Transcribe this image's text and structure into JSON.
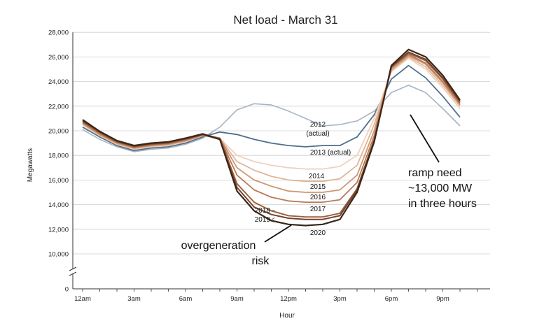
{
  "chart_data": {
    "type": "line",
    "title": "Net load - March 31",
    "xlabel": "Hour",
    "ylabel": "Megawatts",
    "x": [
      0,
      1,
      2,
      3,
      4,
      5,
      6,
      7,
      8,
      9,
      10,
      11,
      12,
      13,
      14,
      15,
      16,
      17,
      18,
      19,
      20,
      21,
      22,
      23
    ],
    "x_tick_labels": [
      {
        "x": 0,
        "label": "12am"
      },
      {
        "x": 3,
        "label": "3am"
      },
      {
        "x": 6,
        "label": "6am"
      },
      {
        "x": 9,
        "label": "9am"
      },
      {
        "x": 12,
        "label": "12pm"
      },
      {
        "x": 15,
        "label": "3pm"
      },
      {
        "x": 18,
        "label": "6pm"
      },
      {
        "x": 21,
        "label": "9pm"
      }
    ],
    "y_ticks": [
      10000,
      12000,
      14000,
      16000,
      18000,
      20000,
      22000,
      24000,
      26000,
      28000
    ],
    "y_tick_labels": [
      "10,000",
      "12,000",
      "14,000",
      "16,000",
      "18,000",
      "20,000",
      "22,000",
      "24,000",
      "26,000",
      "28,000"
    ],
    "y_zero_label": "0",
    "ylim": [
      0,
      28000
    ],
    "axis_break": true,
    "grid": "horizontal",
    "series": [
      {
        "name": "2012 (actual)",
        "color": "#a7b4c2",
        "width": 1.6,
        "values": [
          20100,
          19300,
          18700,
          18300,
          18500,
          18600,
          18900,
          19400,
          20300,
          21700,
          22200,
          22100,
          21600,
          21000,
          20400,
          20500,
          20800,
          21600,
          23100,
          23700,
          23100,
          21800,
          20400,
          null
        ]
      },
      {
        "name": "2013 (actual)",
        "color": "#4f6f8c",
        "width": 1.8,
        "values": [
          20300,
          19500,
          18800,
          18400,
          18600,
          18700,
          19000,
          19500,
          19900,
          19700,
          19300,
          19000,
          18800,
          18700,
          18800,
          18800,
          19500,
          21300,
          24200,
          25300,
          24300,
          22800,
          21100,
          null
        ]
      },
      {
        "name": "2014",
        "color": "#eed2be",
        "width": 1.8,
        "values": [
          20500,
          19600,
          18900,
          18500,
          18700,
          18800,
          19100,
          19600,
          19400,
          18000,
          17500,
          17200,
          17000,
          16900,
          16900,
          17100,
          18000,
          21000,
          24800,
          25900,
          25000,
          23500,
          21800,
          null
        ]
      },
      {
        "name": "2015",
        "color": "#e0b596",
        "width": 1.8,
        "values": [
          20550,
          19650,
          18950,
          18550,
          18750,
          18850,
          19150,
          19600,
          19400,
          17500,
          16800,
          16300,
          16000,
          15900,
          15900,
          16100,
          17200,
          20500,
          24900,
          26000,
          25200,
          23700,
          22000,
          null
        ]
      },
      {
        "name": "2016",
        "color": "#cf9672",
        "width": 1.8,
        "values": [
          20600,
          19700,
          19000,
          18600,
          18800,
          18900,
          19200,
          19650,
          19400,
          17000,
          16000,
          15500,
          15100,
          15000,
          15000,
          15200,
          16400,
          20000,
          25000,
          26100,
          25400,
          23900,
          22100,
          null
        ]
      },
      {
        "name": "2017",
        "color": "#b97a57",
        "width": 1.8,
        "values": [
          20650,
          19750,
          19050,
          18650,
          18850,
          18950,
          19250,
          19650,
          19400,
          16400,
          15200,
          14600,
          14300,
          14200,
          14200,
          14400,
          15800,
          19600,
          25100,
          26200,
          25500,
          24000,
          22200,
          null
        ]
      },
      {
        "name": "2018",
        "color": "#9a5f40",
        "width": 1.9,
        "values": [
          20750,
          19850,
          19100,
          18700,
          18900,
          19000,
          19300,
          19700,
          19400,
          15700,
          14200,
          13500,
          13100,
          13000,
          13000,
          13300,
          15300,
          19300,
          25200,
          26300,
          25700,
          24200,
          22300,
          null
        ]
      },
      {
        "name": "2019",
        "color": "#74432b",
        "width": 2.0,
        "values": [
          20800,
          19900,
          19150,
          18750,
          18950,
          19050,
          19350,
          19700,
          19300,
          15400,
          13800,
          13200,
          12900,
          12800,
          12800,
          13100,
          15200,
          19200,
          25200,
          26400,
          25800,
          24300,
          22400,
          null
        ]
      },
      {
        "name": "2020",
        "color": "#3a2618",
        "width": 2.2,
        "values": [
          20900,
          19950,
          19200,
          18800,
          19000,
          19100,
          19400,
          19750,
          19300,
          15100,
          13500,
          12700,
          12400,
          12300,
          12400,
          12800,
          15000,
          19100,
          25300,
          26600,
          26000,
          24500,
          22500,
          null
        ]
      }
    ],
    "line_labels": [
      {
        "series": "2012 (actual)",
        "lines": [
          "2012",
          "(actual)"
        ]
      },
      {
        "series": "2013 (actual)",
        "lines": [
          "2013 (actual)"
        ]
      },
      {
        "series": "2014",
        "lines": [
          "2014"
        ]
      },
      {
        "series": "2015",
        "lines": [
          "2015"
        ]
      },
      {
        "series": "2016",
        "lines": [
          "2016"
        ]
      },
      {
        "series": "2017",
        "lines": [
          "2017"
        ]
      },
      {
        "series": "2018",
        "lines": [
          "2018"
        ]
      },
      {
        "series": "2019",
        "lines": [
          "2019"
        ]
      },
      {
        "series": "2020",
        "lines": [
          "2020"
        ]
      }
    ],
    "annotations": [
      {
        "name": "ramp-need",
        "lines": [
          "ramp need",
          "~13,000 MW",
          "in three hours"
        ]
      },
      {
        "name": "overgeneration-risk",
        "lines": [
          "overgeneration",
          "risk"
        ]
      }
    ]
  }
}
